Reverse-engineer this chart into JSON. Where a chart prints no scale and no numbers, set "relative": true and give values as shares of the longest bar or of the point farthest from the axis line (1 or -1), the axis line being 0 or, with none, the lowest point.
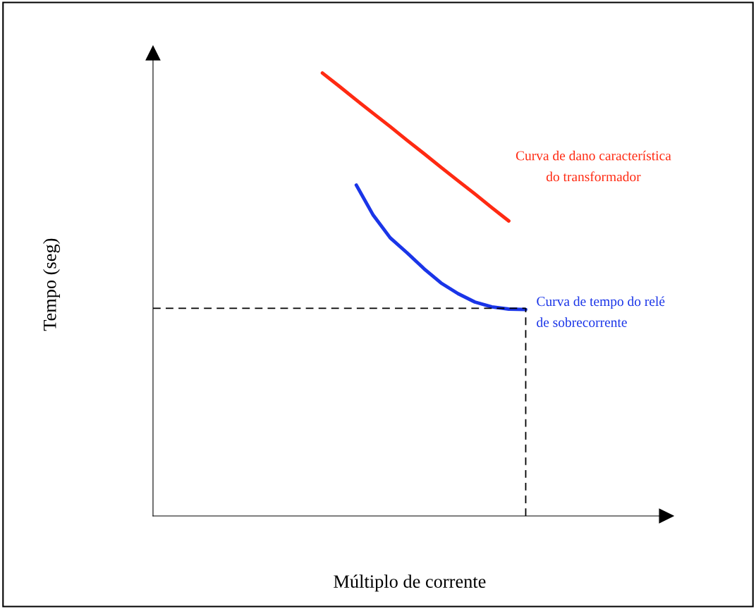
{
  "chart_data": {
    "type": "line",
    "relative": true,
    "tick_labels": false,
    "xlabel": "Múltiplo de corrente",
    "ylabel": "Tempo (seg)",
    "categories": [
      null,
      null,
      null,
      null,
      null,
      null,
      null,
      null,
      null,
      null,
      null,
      null,
      null,
      null,
      null,
      null,
      null,
      null,
      null,
      null,
      null,
      null,
      null,
      null,
      null,
      null,
      null,
      null,
      null,
      null,
      null
    ],
    "series": [
      {
        "name": "Curva de dano característica\ndo transformador",
        "color": "#ff2a12",
        "values": [
          null,
          null,
          null,
          null,
          null,
          null,
          null,
          null,
          null,
          null,
          1.0,
          0.97,
          0.939,
          0.909,
          0.879,
          0.848,
          0.818,
          0.787,
          0.757,
          0.727,
          0.696,
          0.666,
          null,
          null,
          null,
          null,
          null,
          null,
          null,
          null,
          null
        ]
      },
      {
        "name": "Curva de tempo do relé\nde sobrecorrente",
        "color": "#1a35e8",
        "values": [
          null,
          null,
          null,
          null,
          null,
          null,
          null,
          null,
          null,
          null,
          null,
          null,
          0.747,
          0.679,
          0.628,
          0.594,
          0.558,
          0.526,
          0.502,
          0.483,
          0.472,
          0.467,
          0.466,
          null,
          null,
          null,
          null,
          null,
          null,
          null,
          null
        ]
      }
    ],
    "ref_lines": [
      {
        "axis": "y",
        "value": 0.469,
        "color": "#000000",
        "line_style": "dashed"
      }
    ]
  }
}
